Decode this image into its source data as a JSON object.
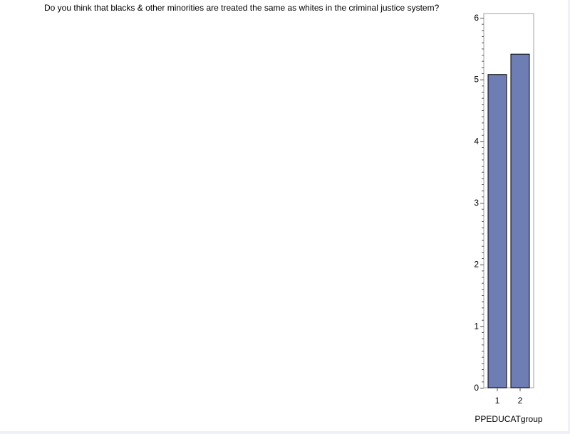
{
  "chart_data": {
    "type": "bar",
    "title": "Do you think that blacks & other minorities are treated the same as whites in the criminal justice system?",
    "categories": [
      "1",
      "2"
    ],
    "values": [
      5.08,
      5.41
    ],
    "xlabel": "PPEDUCATgroup",
    "ylabel": "",
    "ylim": [
      0,
      6
    ],
    "yticks": [
      0,
      1,
      2,
      3,
      4,
      5,
      6
    ],
    "grid": false,
    "bar_color": "#6f7db5",
    "bar_edge_color": "#000000"
  }
}
